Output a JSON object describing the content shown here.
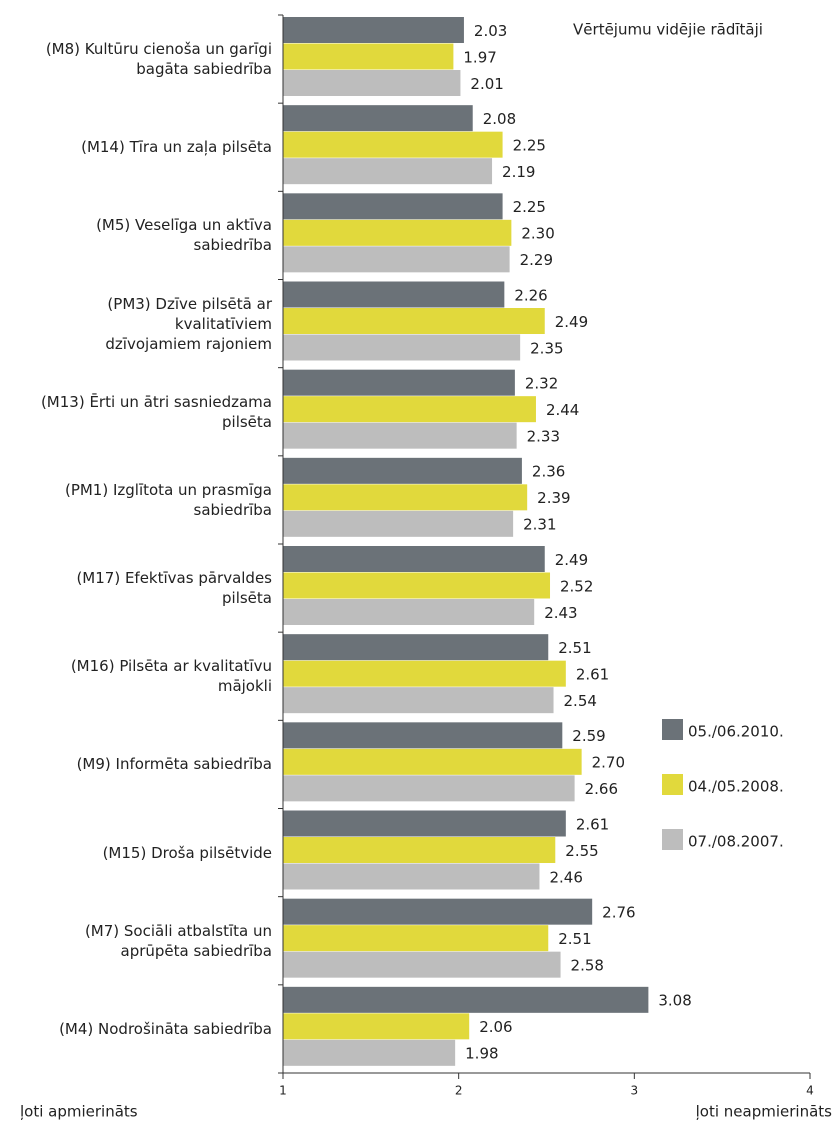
{
  "chart_data": {
    "type": "hbar",
    "subtitle": "Vērtējumu vidējie rādītāji",
    "x_label_left": "ļoti apmierināts",
    "x_label_right": "ļoti neapmierināts",
    "categories": [
      "(M8) Kultūru cienoša un garīgi\nbagāta sabiedrība",
      "(M14) Tīra un zaļa pilsēta",
      "(M5) Veselīga un aktīva\nsabiedrība",
      "(PM3) Dzīve pilsētā ar\nkvalitatīviem\ndzīvojamiem rajoniem",
      "(M13) Ērti un ātri sasniedzama\npilsēta",
      "(PM1) Izglītota un prasmīga\nsabiedrība",
      "(M17) Efektīvas pārvaldes\npilsēta",
      "(M16) Pilsēta ar kvalitatīvu\nmājokli",
      "(M9) Informēta sabiedrība",
      "(M15) Droša pilsētvide",
      "(M7) Sociāli atbalstīta un\naprūpēta sabiedrība",
      "(M4) Nodrošināta sabiedrība"
    ],
    "series": [
      {
        "name": "05./06.2010.",
        "color": "#6b7278",
        "values": [
          2.03,
          2.08,
          2.25,
          2.26,
          2.32,
          2.36,
          2.49,
          2.51,
          2.59,
          2.61,
          2.76,
          3.08
        ],
        "value_labels": [
          "2.03",
          "2.08",
          "2.25",
          "2.26",
          "2.32",
          "2.36",
          "2.49",
          "2.51",
          "2.59",
          "2.61",
          "2.76",
          "3.08"
        ]
      },
      {
        "name": "04./05.2008.",
        "color": "#e1d93c",
        "values": [
          1.97,
          2.25,
          2.3,
          2.49,
          2.44,
          2.39,
          2.52,
          2.61,
          2.7,
          2.55,
          2.51,
          2.06
        ],
        "value_labels": [
          "1.97",
          "2.25",
          "2.30",
          "2.49",
          "2.44",
          "2.39",
          "2.52",
          "2.61",
          "2.70",
          "2.55",
          "2.51",
          "2.06"
        ]
      },
      {
        "name": "07./08.2007.",
        "color": "#bdbdbd",
        "values": [
          2.01,
          2.19,
          2.29,
          2.35,
          2.33,
          2.31,
          2.43,
          2.54,
          2.66,
          2.46,
          2.58,
          1.98
        ],
        "value_labels": [
          "2.01",
          "2.19",
          "2.29",
          "2.35",
          "2.33",
          "2.31",
          "2.43",
          "2.54",
          "2.66",
          "2.46",
          "2.58",
          "1.98"
        ]
      }
    ],
    "xlim": [
      1,
      4
    ],
    "xticks": [
      1,
      2,
      3,
      4
    ]
  }
}
